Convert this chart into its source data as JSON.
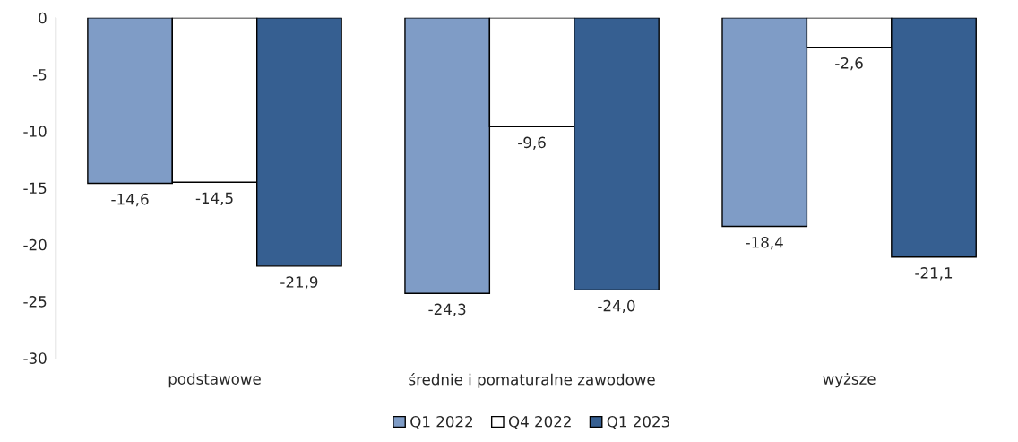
{
  "chart_data": {
    "type": "bar",
    "categories": [
      "podstawowe",
      "średnie i pomaturalne zawodowe",
      "wyższe"
    ],
    "series": [
      {
        "name": "Q1 2022",
        "color": "#7f9cc6",
        "values": [
          -14.6,
          -24.3,
          -18.4
        ],
        "value_labels": [
          "-14,6",
          "-24,3",
          "-18,4"
        ]
      },
      {
        "name": "Q4 2022",
        "color": "#ffffff",
        "values": [
          -14.5,
          -9.6,
          -2.6
        ],
        "value_labels": [
          "-14,5",
          "-9,6",
          "-2,6"
        ]
      },
      {
        "name": "Q1 2023",
        "color": "#365f91",
        "values": [
          -21.9,
          -24.0,
          -21.1
        ],
        "value_labels": [
          "-21,9",
          "-24,0",
          "-21,1"
        ]
      }
    ],
    "ylim": [
      -30,
      0
    ],
    "yticks": [
      0,
      -5,
      -10,
      -15,
      -20,
      -25,
      -30
    ],
    "grid": false,
    "legend": "bottom"
  }
}
